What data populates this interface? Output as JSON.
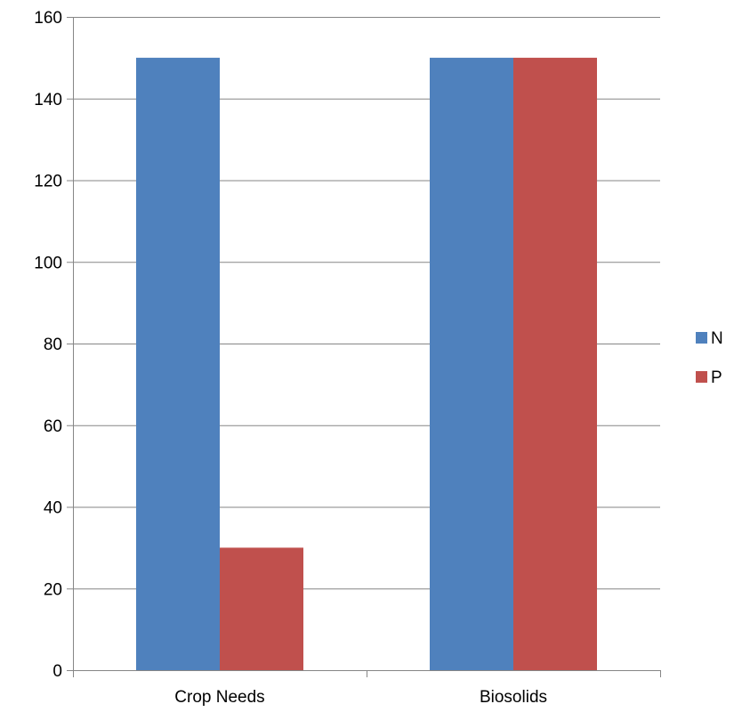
{
  "chart_data": {
    "type": "bar",
    "categories": [
      "Crop Needs",
      "Biosolids"
    ],
    "series": [
      {
        "name": "N",
        "values": [
          150,
          150
        ],
        "color": "#4F81BD"
      },
      {
        "name": "P",
        "values": [
          30,
          150
        ],
        "color": "#C0504D"
      }
    ],
    "ylim": [
      0,
      160
    ],
    "yticks": [
      0,
      20,
      40,
      60,
      80,
      100,
      120,
      140,
      160
    ],
    "grid": true,
    "legend_position": "right",
    "title": "",
    "xlabel": "",
    "ylabel": ""
  }
}
